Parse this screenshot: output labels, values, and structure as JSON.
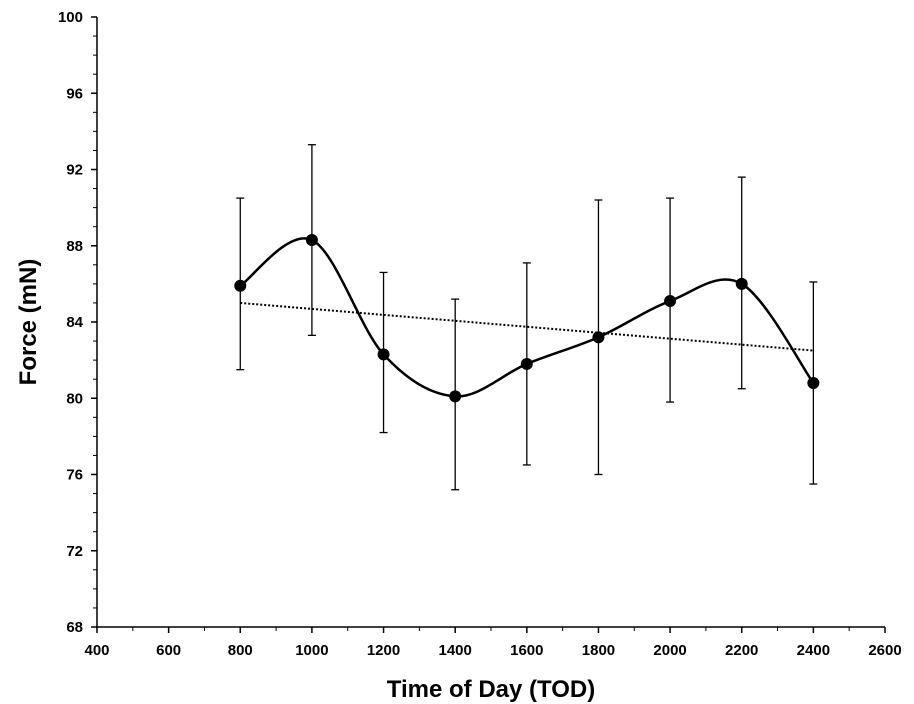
{
  "chart_data": {
    "type": "scatter",
    "title": "",
    "xlabel": "Time of Day (TOD)",
    "ylabel": "Force (mN)",
    "xlim": [
      400,
      2600
    ],
    "ylim": [
      68,
      100
    ],
    "xticks": [
      400,
      600,
      800,
      1000,
      1200,
      1400,
      1600,
      1800,
      2000,
      2200,
      2400,
      2600
    ],
    "yticks": [
      68,
      72,
      76,
      80,
      84,
      88,
      92,
      96,
      100
    ],
    "grid": false,
    "legend": "none",
    "series": [
      {
        "style": "smoothed line with circular markers",
        "color": "#000000",
        "x": [
          800,
          1000,
          1200,
          1400,
          1600,
          1800,
          2000,
          2200,
          2400
        ],
        "y": [
          85.9,
          88.3,
          82.3,
          80.1,
          81.8,
          83.2,
          85.1,
          86.0,
          80.8
        ],
        "error_upper": [
          90.5,
          93.3,
          86.6,
          85.2,
          87.1,
          90.4,
          90.5,
          91.6,
          86.1
        ],
        "error_lower": [
          81.5,
          83.3,
          78.2,
          75.2,
          76.5,
          76.0,
          79.8,
          80.5,
          75.5
        ]
      }
    ],
    "trendline": {
      "style": "dotted linear",
      "color": "#000000",
      "x": [
        800,
        2400
      ],
      "y": [
        85.0,
        82.5
      ]
    }
  }
}
